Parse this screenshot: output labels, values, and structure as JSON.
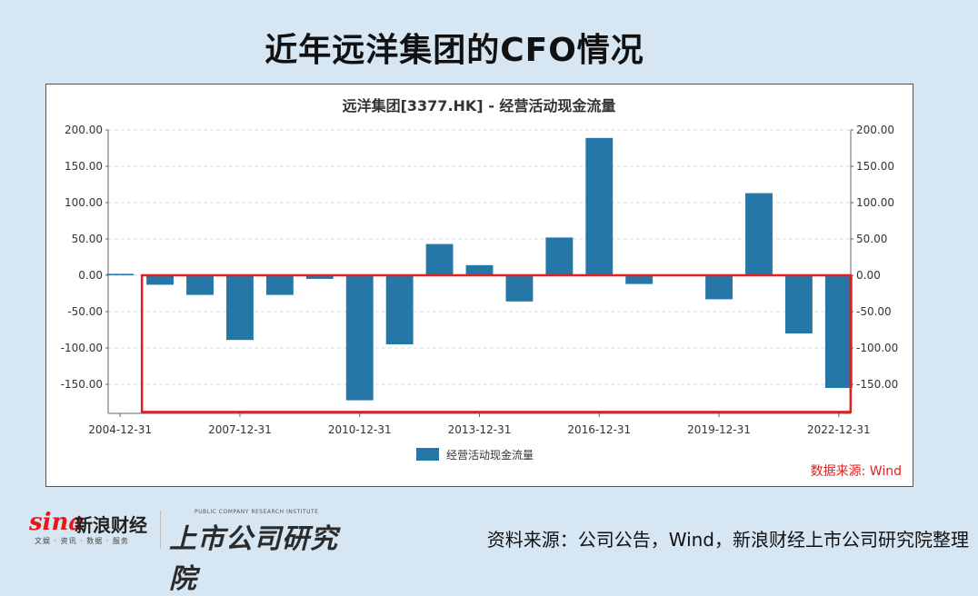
{
  "headline": "近年远洋集团的CFO情况",
  "chart_data": {
    "type": "bar",
    "title": "远洋集团[3377.HK] - 经营活动现金流量",
    "x": [
      "2004-12-31",
      "2005-12-31",
      "2006-12-31",
      "2007-12-31",
      "2008-12-31",
      "2009-12-31",
      "2010-12-31",
      "2011-12-31",
      "2012-12-31",
      "2013-12-31",
      "2014-12-31",
      "2015-12-31",
      "2016-12-31",
      "2017-12-31",
      "2018-12-31",
      "2019-12-31",
      "2020-12-31",
      "2021-12-31",
      "2022-12-31"
    ],
    "x_tick_labels": [
      "2004-12-31",
      "2007-12-31",
      "2010-12-31",
      "2013-12-31",
      "2016-12-31",
      "2019-12-31",
      "2022-12-31"
    ],
    "series": [
      {
        "name": "经营活动现金流量",
        "values": [
          2,
          -13,
          -27,
          -89,
          -27,
          -5,
          -172,
          -95,
          43,
          14,
          -36,
          52,
          189,
          -12,
          0,
          -33,
          113,
          -80,
          -155
        ]
      }
    ],
    "ylim": [
      -190,
      200
    ],
    "y_ticks": [
      "200.00",
      "150.00",
      "100.00",
      "50.00",
      "0.00",
      "-50.00",
      "-100.00",
      "-150.00"
    ],
    "y_tick_values": [
      200,
      150,
      100,
      50,
      0,
      -50,
      -100,
      -150
    ],
    "legend": "bottom-center",
    "grid": true,
    "colors": {
      "bar": "#2477a6",
      "highlight_box": "#e02020",
      "grid": "#dddddd"
    },
    "highlight_range": {
      "from": "2005-12-31",
      "to": "2022-12-31",
      "below": 0
    }
  },
  "source_note": "数据来源: Wind",
  "brand": {
    "sina_logo": "sina",
    "sina_name": "新浪财经",
    "sina_tagline": "文娱 · 资讯 · 数据 · 服务",
    "institute_en": "PUBLIC COMPANY RESEARCH INSTITUTE",
    "institute_cn": "上市公司研究院"
  },
  "credit": "资料来源：公司公告，Wind，新浪财经上市公司研究院整理"
}
